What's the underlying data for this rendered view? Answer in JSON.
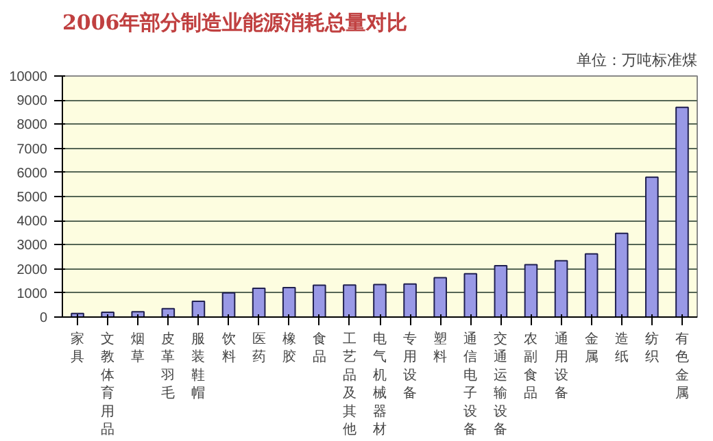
{
  "chart_data": {
    "type": "bar",
    "title": "2006年部分制造业能源消耗总量对比",
    "subtitle": "单位：万吨标准煤",
    "categories": [
      "家具",
      "文教体育用品",
      "烟草",
      "皮革羽毛",
      "服装鞋帽",
      "饮料",
      "医药",
      "橡胶",
      "食品",
      "工艺品及其他",
      "电气机械器材",
      "专用设备",
      "塑料",
      "通信电子设备",
      "交通运输设备",
      "农副食品",
      "通用设备",
      "金属",
      "造纸",
      "纺织",
      "有色金属"
    ],
    "values": [
      150,
      200,
      220,
      350,
      650,
      1000,
      1190,
      1220,
      1320,
      1330,
      1350,
      1370,
      1630,
      1800,
      2130,
      2170,
      2340,
      2620,
      3470,
      5800,
      8700
    ],
    "color": "#9999e6",
    "ylim": [
      0,
      10000
    ],
    "yticks": [
      0,
      1000,
      2000,
      3000,
      4000,
      5000,
      6000,
      7000,
      8000,
      9000,
      10000
    ],
    "grid": "y"
  }
}
